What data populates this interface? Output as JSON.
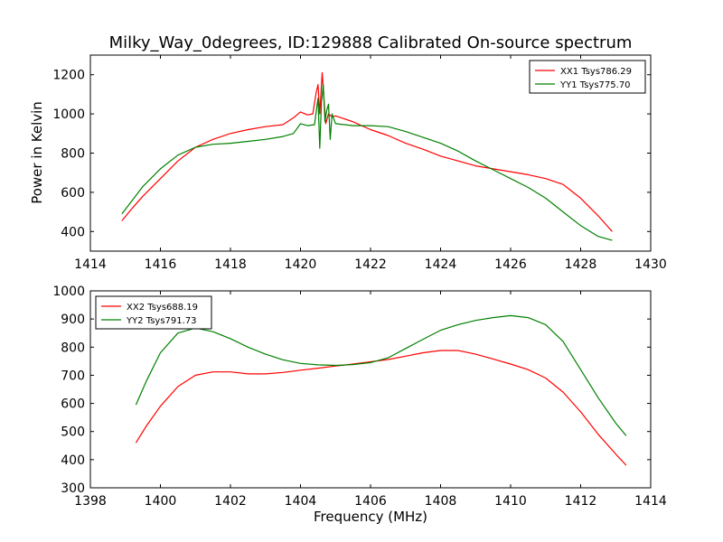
{
  "chart_data": [
    {
      "type": "line",
      "title": "Milky_Way_0degrees, ID:129888 Calibrated On-source spectrum",
      "xlabel": "",
      "ylabel": "Power in Kelvin",
      "xlim": [
        1414,
        1430
      ],
      "ylim": [
        300,
        1300
      ],
      "xticks": [
        "1414",
        "1416",
        "1418",
        "1420",
        "1422",
        "1424",
        "1426",
        "1428",
        "1430"
      ],
      "yticks": [
        "400",
        "600",
        "800",
        "1000",
        "1200"
      ],
      "legend_position": "upper-right",
      "series": [
        {
          "name": "XX1 Tsys786.29",
          "color": "#ff0000",
          "x": [
            1414.9,
            1415.2,
            1415.5,
            1416.0,
            1416.5,
            1417.0,
            1417.5,
            1418.0,
            1418.5,
            1419.0,
            1419.5,
            1419.8,
            1420.0,
            1420.2,
            1420.35,
            1420.45,
            1420.5,
            1420.55,
            1420.62,
            1420.68,
            1420.72,
            1420.8,
            1420.9,
            1421.0,
            1421.5,
            1422.0,
            1422.5,
            1423.0,
            1423.5,
            1424.0,
            1424.5,
            1425.0,
            1425.5,
            1426.0,
            1426.5,
            1427.0,
            1427.5,
            1428.0,
            1428.5,
            1428.9
          ],
          "y": [
            455,
            520,
            580,
            670,
            760,
            830,
            870,
            900,
            920,
            935,
            945,
            980,
            1010,
            995,
            1000,
            1110,
            1150,
            1000,
            1210,
            1050,
            950,
            1000,
            985,
            990,
            960,
            920,
            890,
            850,
            820,
            785,
            760,
            735,
            720,
            705,
            690,
            670,
            640,
            570,
            480,
            400
          ]
        },
        {
          "name": "YY1 Tsys775.70",
          "color": "#008000",
          "x": [
            1414.9,
            1415.2,
            1415.5,
            1416.0,
            1416.5,
            1417.0,
            1417.5,
            1418.0,
            1418.5,
            1419.0,
            1419.5,
            1419.8,
            1420.0,
            1420.2,
            1420.4,
            1420.5,
            1420.55,
            1420.6,
            1420.65,
            1420.7,
            1420.75,
            1420.8,
            1420.85,
            1420.9,
            1421.0,
            1421.5,
            1422.0,
            1422.5,
            1423.0,
            1423.5,
            1424.0,
            1424.5,
            1425.0,
            1425.5,
            1426.0,
            1426.5,
            1427.0,
            1427.5,
            1428.0,
            1428.5,
            1428.9
          ],
          "y": [
            490,
            560,
            630,
            720,
            790,
            830,
            845,
            850,
            860,
            870,
            885,
            900,
            950,
            940,
            945,
            1080,
            825,
            1060,
            1150,
            960,
            1020,
            1050,
            870,
            1000,
            950,
            940,
            940,
            935,
            910,
            880,
            850,
            810,
            760,
            715,
            670,
            625,
            570,
            500,
            430,
            375,
            355
          ]
        }
      ]
    },
    {
      "type": "line",
      "title": "",
      "xlabel": "Frequency (MHz)",
      "ylabel": "",
      "xlim": [
        1398,
        1414
      ],
      "ylim": [
        300,
        1000
      ],
      "xticks": [
        "1398",
        "1400",
        "1402",
        "1404",
        "1406",
        "1408",
        "1410",
        "1412",
        "1414"
      ],
      "yticks": [
        "300",
        "400",
        "500",
        "600",
        "700",
        "800",
        "900",
        "1000"
      ],
      "legend_position": "upper-left",
      "series": [
        {
          "name": "XX2 Tsys688.19",
          "color": "#ff0000",
          "x": [
            1399.3,
            1399.6,
            1400.0,
            1400.5,
            1401.0,
            1401.5,
            1402.0,
            1402.5,
            1403.0,
            1403.5,
            1404.0,
            1404.5,
            1405.0,
            1405.5,
            1406.0,
            1406.5,
            1407.0,
            1407.5,
            1408.0,
            1408.5,
            1409.0,
            1409.5,
            1410.0,
            1410.5,
            1411.0,
            1411.5,
            1412.0,
            1412.5,
            1413.0,
            1413.3
          ],
          "y": [
            460,
            520,
            590,
            660,
            700,
            712,
            712,
            705,
            705,
            710,
            718,
            725,
            733,
            740,
            748,
            756,
            768,
            780,
            788,
            788,
            775,
            758,
            740,
            720,
            690,
            640,
            570,
            490,
            420,
            380
          ]
        },
        {
          "name": "YY2 Tsys791.73",
          "color": "#008000",
          "x": [
            1399.3,
            1399.6,
            1400.0,
            1400.5,
            1401.0,
            1401.5,
            1402.0,
            1402.5,
            1403.0,
            1403.5,
            1404.0,
            1404.5,
            1405.0,
            1405.5,
            1406.0,
            1406.5,
            1407.0,
            1407.5,
            1408.0,
            1408.5,
            1409.0,
            1409.5,
            1410.0,
            1410.5,
            1411.0,
            1411.5,
            1412.0,
            1412.5,
            1413.0,
            1413.3
          ],
          "y": [
            595,
            680,
            780,
            850,
            868,
            855,
            830,
            800,
            775,
            755,
            742,
            737,
            735,
            738,
            745,
            762,
            795,
            828,
            860,
            880,
            895,
            905,
            912,
            905,
            880,
            820,
            720,
            620,
            530,
            485
          ]
        }
      ]
    }
  ]
}
